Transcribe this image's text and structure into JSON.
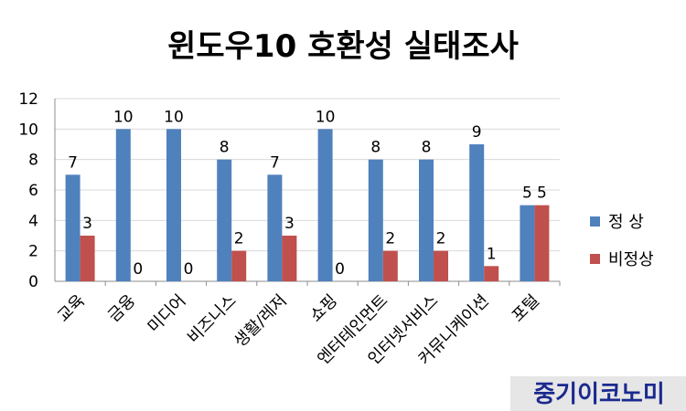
{
  "chart_data": {
    "type": "bar",
    "title": "윈도우10 호환성 실태조사",
    "categories": [
      "교육",
      "금융",
      "미디어",
      "비즈니스",
      "생활/레저",
      "쇼핑",
      "엔터테인먼트",
      "인터넷서비스",
      "커뮤니케이션",
      "포털"
    ],
    "series": [
      {
        "name": "정 상",
        "values": [
          7,
          10,
          10,
          8,
          7,
          10,
          8,
          8,
          9,
          5
        ],
        "color": "#4f81bd"
      },
      {
        "name": "비정상",
        "values": [
          3,
          0,
          0,
          2,
          3,
          0,
          2,
          2,
          1,
          5
        ],
        "color": "#c0504d"
      }
    ],
    "ylim": [
      0,
      12
    ],
    "yticks": [
      0,
      2,
      4,
      6,
      8,
      10,
      12
    ],
    "grid": true,
    "legend": "right"
  },
  "watermark": "중기이코노미"
}
